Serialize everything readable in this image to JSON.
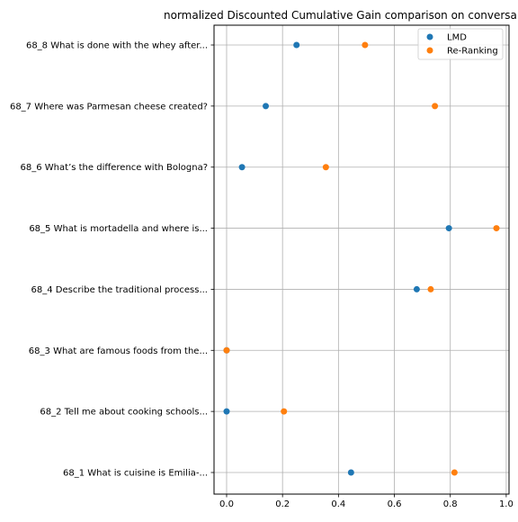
{
  "chart_data": {
    "type": "scatter",
    "title": "normalized Discounted Cumulative Gain comparison on conversa",
    "xlabel": "",
    "ylabel": "",
    "xlim": [
      -0.045,
      1.01
    ],
    "xticks": [
      0.0,
      0.2,
      0.4,
      0.6,
      0.8,
      1.0
    ],
    "xtick_labels": [
      "0.0",
      "0.2",
      "0.4",
      "0.6",
      "0.8",
      "1.0"
    ],
    "grid": true,
    "legend_position": "top-right",
    "categories": [
      "68_8 What is done with the whey after...",
      "68_7 Where was Parmesan cheese created?",
      "68_6 What’s the difference with Bologna?",
      "68_5 What is mortadella and where is...",
      "68_4 Describe the traditional process...",
      "68_3 What are famous foods from the...",
      "68_2 Tell me about cooking schools...",
      "68_1 What is cuisine is Emilia-..."
    ],
    "series": [
      {
        "name": "LMD",
        "color": "#1f77b4",
        "values": [
          0.25,
          0.14,
          0.055,
          0.795,
          0.68,
          0.0,
          0.0,
          0.445
        ]
      },
      {
        "name": "Re-Ranking",
        "color": "#ff7f0e",
        "values": [
          0.495,
          0.745,
          0.355,
          0.965,
          0.73,
          0.0,
          0.205,
          0.815
        ]
      }
    ]
  }
}
